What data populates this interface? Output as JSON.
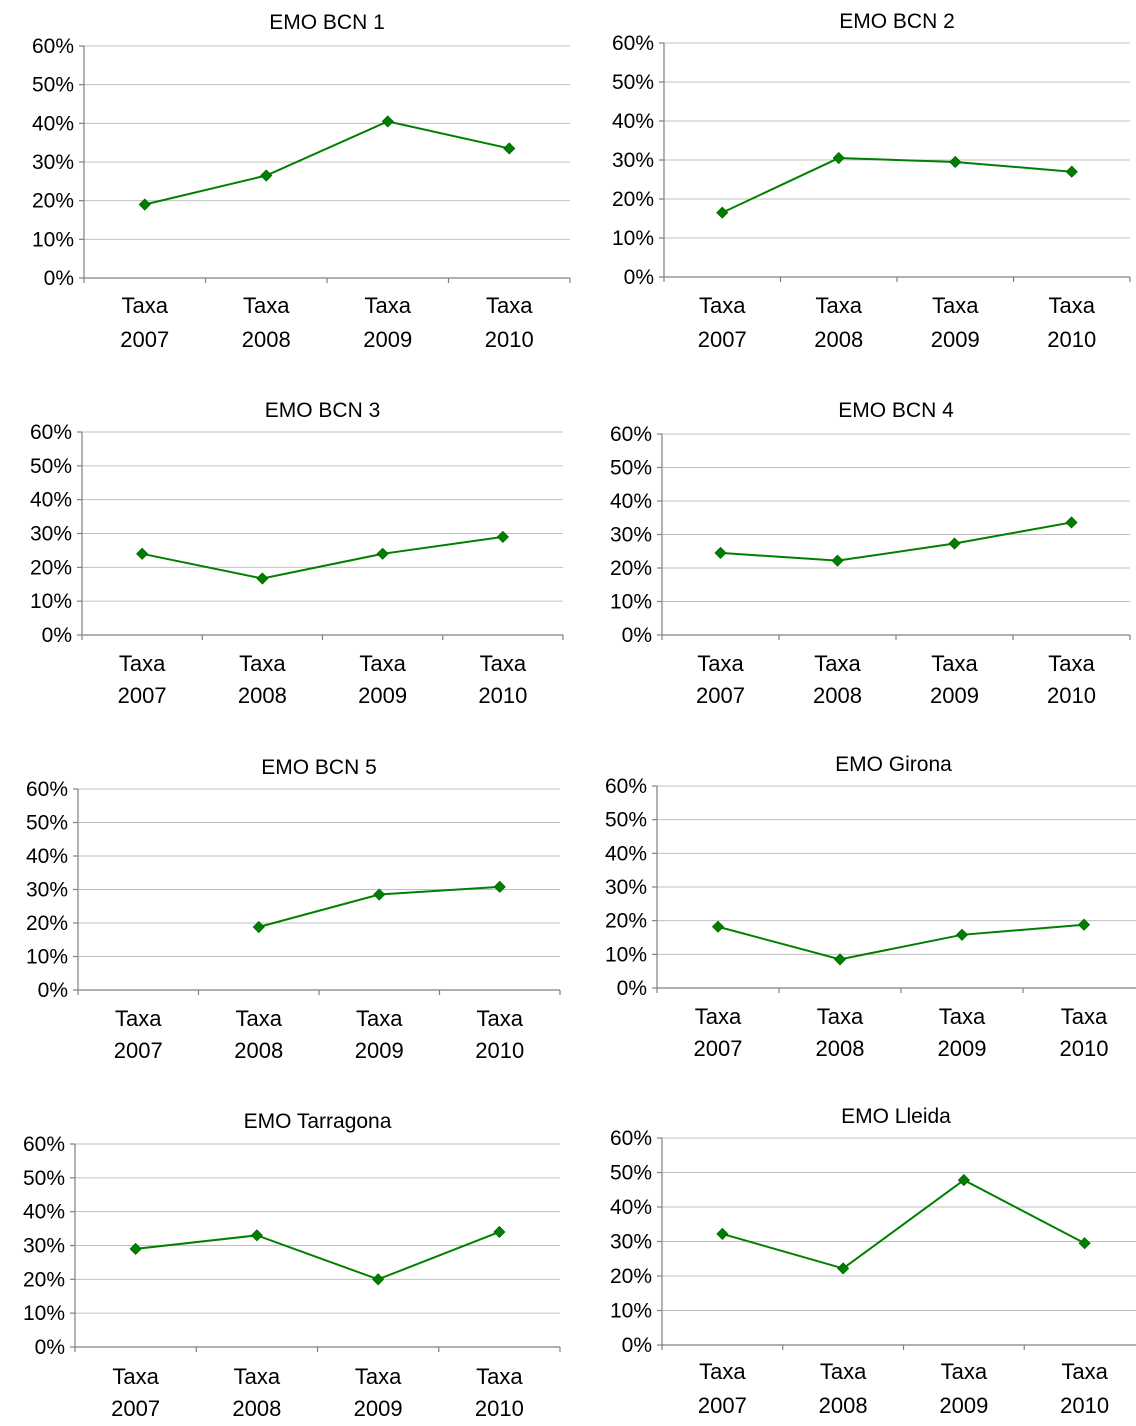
{
  "chart_data": [
    {
      "type": "line",
      "title": "EMO BCN 1",
      "categories": [
        [
          "Taxa",
          "2007"
        ],
        [
          "Taxa",
          "2008"
        ],
        [
          "Taxa",
          "2009"
        ],
        [
          "Taxa",
          "2010"
        ]
      ],
      "series": [
        {
          "values": [
            0.19,
            0.265,
            0.405,
            0.335
          ]
        }
      ],
      "ylim": [
        0,
        0.6
      ],
      "yticks": [
        "0%",
        "10%",
        "20%",
        "30%",
        "40%",
        "50%",
        "60%"
      ],
      "grid": true,
      "color": "#008000"
    },
    {
      "type": "line",
      "title": "EMO BCN 2",
      "categories": [
        [
          "Taxa",
          "2007"
        ],
        [
          "Taxa",
          "2008"
        ],
        [
          "Taxa",
          "2009"
        ],
        [
          "Taxa",
          "2010"
        ]
      ],
      "series": [
        {
          "values": [
            0.165,
            0.305,
            0.295,
            0.27
          ]
        }
      ],
      "ylim": [
        0,
        0.6
      ],
      "yticks": [
        "0%",
        "10%",
        "20%",
        "30%",
        "40%",
        "50%",
        "60%"
      ],
      "grid": true,
      "color": "#008000"
    },
    {
      "type": "line",
      "title": "EMO BCN 3",
      "categories": [
        [
          "Taxa",
          "2007"
        ],
        [
          "Taxa",
          "2008"
        ],
        [
          "Taxa",
          "2009"
        ],
        [
          "Taxa",
          "2010"
        ]
      ],
      "series": [
        {
          "values": [
            0.24,
            0.167,
            0.24,
            0.29
          ]
        }
      ],
      "ylim": [
        0,
        0.6
      ],
      "yticks": [
        "0%",
        "10%",
        "20%",
        "30%",
        "40%",
        "50%",
        "60%"
      ],
      "grid": true,
      "color": "#008000"
    },
    {
      "type": "line",
      "title": "EMO BCN 4",
      "categories": [
        [
          "Taxa",
          "2007"
        ],
        [
          "Taxa",
          "2008"
        ],
        [
          "Taxa",
          "2009"
        ],
        [
          "Taxa",
          "2010"
        ]
      ],
      "series": [
        {
          "values": [
            0.245,
            0.222,
            0.273,
            0.336
          ]
        }
      ],
      "ylim": [
        0,
        0.6
      ],
      "yticks": [
        "0%",
        "10%",
        "20%",
        "30%",
        "40%",
        "50%",
        "60%"
      ],
      "grid": true,
      "color": "#008000"
    },
    {
      "type": "line",
      "title": "EMO BCN 5",
      "categories": [
        [
          "Taxa",
          "2007"
        ],
        [
          "Taxa",
          "2008"
        ],
        [
          "Taxa",
          "2009"
        ],
        [
          "Taxa",
          "2010"
        ]
      ],
      "series": [
        {
          "values": [
            null,
            0.188,
            0.285,
            0.308
          ]
        }
      ],
      "ylim": [
        0,
        0.6
      ],
      "yticks": [
        "0%",
        "10%",
        "20%",
        "30%",
        "40%",
        "50%",
        "60%"
      ],
      "grid": true,
      "color": "#008000"
    },
    {
      "type": "line",
      "title": "EMO Girona",
      "categories": [
        [
          "Taxa",
          "2007"
        ],
        [
          "Taxa",
          "2008"
        ],
        [
          "Taxa",
          "2009"
        ],
        [
          "Taxa",
          "2010"
        ]
      ],
      "series": [
        {
          "values": [
            0.182,
            0.085,
            0.158,
            0.188
          ]
        }
      ],
      "ylim": [
        0,
        0.6
      ],
      "yticks": [
        "0%",
        "10%",
        "20%",
        "30%",
        "40%",
        "50%",
        "60%"
      ],
      "grid": true,
      "color": "#008000"
    },
    {
      "type": "line",
      "title": "EMO Tarragona",
      "categories": [
        [
          "Taxa",
          "2007"
        ],
        [
          "Taxa",
          "2008"
        ],
        [
          "Taxa",
          "2009"
        ],
        [
          "Taxa",
          "2010"
        ]
      ],
      "series": [
        {
          "values": [
            0.29,
            0.33,
            0.2,
            0.34
          ]
        }
      ],
      "ylim": [
        0,
        0.6
      ],
      "yticks": [
        "0%",
        "10%",
        "20%",
        "30%",
        "40%",
        "50%",
        "60%"
      ],
      "grid": true,
      "color": "#008000"
    },
    {
      "type": "line",
      "title": "EMO Lleida",
      "categories": [
        [
          "Taxa",
          "2007"
        ],
        [
          "Taxa",
          "2008"
        ],
        [
          "Taxa",
          "2009"
        ],
        [
          "Taxa",
          "2010"
        ]
      ],
      "series": [
        {
          "values": [
            0.322,
            0.222,
            0.478,
            0.295
          ]
        }
      ],
      "ylim": [
        0,
        0.6
      ],
      "yticks": [
        "0%",
        "10%",
        "20%",
        "30%",
        "40%",
        "50%",
        "60%"
      ],
      "grid": true,
      "color": "#008000"
    }
  ]
}
